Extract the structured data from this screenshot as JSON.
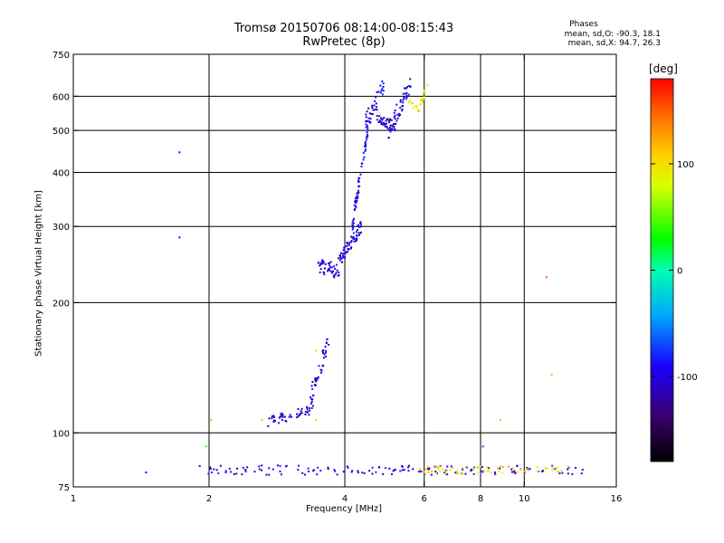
{
  "chart_data": {
    "type": "scatter",
    "title": "Tromsø 20150706 08:14:00-08:15:43",
    "subtitle": "RwPretec (8p)",
    "xlabel": "Frequency [MHz]",
    "ylabel": "Stationary phase Virtual Height [km]",
    "x_scale": "log",
    "y_scale": "log",
    "xlim": [
      1,
      16
    ],
    "ylim": [
      75,
      750
    ],
    "x_ticks": [
      1,
      2,
      4,
      6,
      8,
      10,
      16
    ],
    "x_tick_labels": [
      "1",
      "2",
      "4",
      "6",
      "8",
      "10",
      "16"
    ],
    "y_ticks": [
      75,
      100,
      200,
      300,
      400,
      500,
      600,
      750
    ],
    "y_tick_labels": [
      "75",
      "100",
      "200",
      "300",
      "400",
      "500",
      "600",
      "750"
    ],
    "x_gridlines": [
      2,
      4,
      6,
      8,
      10
    ],
    "y_gridlines": [
      100,
      200,
      300,
      400,
      500,
      600
    ],
    "grid": true,
    "colorbar": {
      "label": "[deg]",
      "min": -180,
      "max": 180,
      "ticks": [
        100,
        0,
        -100
      ],
      "tick_labels": [
        "100",
        "0",
        "-100"
      ],
      "colormap": "rainbow"
    },
    "phase_stats": {
      "title": "Phases",
      "o_mode": "mean, sd,O: -90.3, 18.1",
      "x_mode": "mean, sd,X:  94.7, 26.3"
    },
    "series": [
      {
        "segments": [
          {
            "x0": 2.7,
            "x1": 3.45,
            "y0": 106,
            "y1": 114,
            "n": 50,
            "jy": 0.025,
            "phase": -100
          },
          {
            "x0": 3.35,
            "x1": 3.7,
            "y0": 120,
            "y1": 165,
            "n": 40,
            "jy": 0.05,
            "phase": -100
          },
          {
            "x0": 3.45,
            "x1": 3.9,
            "y0": 245,
            "y1": 235,
            "n": 45,
            "jy": 0.04,
            "phase": -100
          },
          {
            "x0": 3.85,
            "x1": 4.35,
            "y0": 245,
            "y1": 300,
            "n": 70,
            "jy": 0.035,
            "phase": -100
          },
          {
            "x0": 4.15,
            "x1": 4.5,
            "y0": 300,
            "y1": 500,
            "n": 60,
            "jy": 0.04,
            "phase": -100
          },
          {
            "x0": 4.45,
            "x1": 4.9,
            "y0": 520,
            "y1": 635,
            "n": 40,
            "jy": 0.05,
            "phase": -100
          },
          {
            "x0": 4.7,
            "x1": 5.2,
            "y0": 540,
            "y1": 500,
            "n": 40,
            "jy": 0.03,
            "phase": -100
          },
          {
            "x0": 5.0,
            "x1": 5.6,
            "y0": 500,
            "y1": 640,
            "n": 50,
            "jy": 0.05,
            "phase": -100
          },
          {
            "x0": 5.55,
            "x1": 5.85,
            "y0": 580,
            "y1": 560,
            "n": 12,
            "jy": 0.015,
            "phase": 100
          },
          {
            "x0": 5.85,
            "x1": 6.1,
            "y0": 560,
            "y1": 640,
            "n": 14,
            "jy": 0.02,
            "phase": 100
          },
          {
            "x0": 1.9,
            "x1": 13.5,
            "y0": 82,
            "y1": 82,
            "n": 150,
            "jy": 0.025,
            "phase": -100
          },
          {
            "x0": 5.8,
            "x1": 12.5,
            "y0": 82,
            "y1": 82,
            "n": 60,
            "jy": 0.02,
            "phase": 100
          }
        ],
        "points": [
          {
            "x": 1.72,
            "y": 445,
            "phase": -100
          },
          {
            "x": 1.72,
            "y": 283,
            "phase": -100
          },
          {
            "x": 1.45,
            "y": 81,
            "phase": -100
          },
          {
            "x": 1.97,
            "y": 93,
            "phase": 30
          },
          {
            "x": 2.02,
            "y": 107,
            "phase": 120
          },
          {
            "x": 2.62,
            "y": 107,
            "phase": 60
          },
          {
            "x": 3.45,
            "y": 155,
            "phase": 100
          },
          {
            "x": 3.45,
            "y": 107,
            "phase": 100
          },
          {
            "x": 11.2,
            "y": 229,
            "phase": 150
          },
          {
            "x": 11.5,
            "y": 136,
            "phase": 120
          },
          {
            "x": 8.85,
            "y": 107,
            "phase": 120
          },
          {
            "x": 8.1,
            "y": 93,
            "phase": -60
          },
          {
            "x": 13.0,
            "y": 83,
            "phase": -100
          }
        ]
      }
    ]
  }
}
